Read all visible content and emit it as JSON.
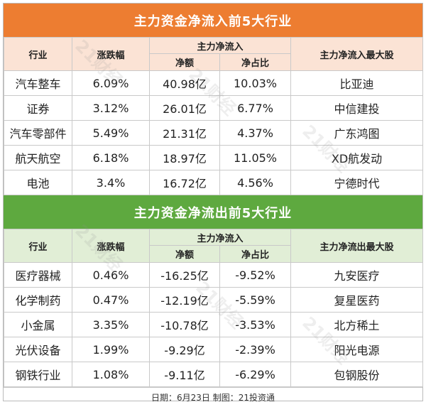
{
  "inflow": {
    "title": "主力资金净流入前5大行业",
    "headers": {
      "industry": "行业",
      "change": "涨跌幅",
      "net": "主力净流入",
      "amount": "净额",
      "ratio": "净占比",
      "top_stock": "主力净流入最大股"
    },
    "rows": [
      {
        "industry": "汽车整车",
        "change": "6.09%",
        "amount": "40.98亿",
        "ratio": "10.03%",
        "top_stock": "比亚迪"
      },
      {
        "industry": "证券",
        "change": "3.12%",
        "amount": "26.01亿",
        "ratio": "6.77%",
        "top_stock": "中信建投"
      },
      {
        "industry": "汽车零部件",
        "change": "5.49%",
        "amount": "21.31亿",
        "ratio": "4.37%",
        "top_stock": "广东鸿图"
      },
      {
        "industry": "航天航空",
        "change": "6.18%",
        "amount": "18.97亿",
        "ratio": "11.05%",
        "top_stock": "XD航发动"
      },
      {
        "industry": "电池",
        "change": "3.4%",
        "amount": "16.72亿",
        "ratio": "4.56%",
        "top_stock": "宁德时代"
      }
    ]
  },
  "outflow": {
    "title": "主力资金净流出前5大行业",
    "headers": {
      "industry": "行业",
      "change": "涨跌幅",
      "net": "主力净流入",
      "amount": "净额",
      "ratio": "净占比",
      "top_stock": "主力净流出最大股"
    },
    "rows": [
      {
        "industry": "医疗器械",
        "change": "0.46%",
        "amount": "-16.25亿",
        "ratio": "-9.52%",
        "top_stock": "九安医疗"
      },
      {
        "industry": "化学制药",
        "change": "0.47%",
        "amount": "-12.19亿",
        "ratio": "-5.59%",
        "top_stock": "复星医药"
      },
      {
        "industry": "小金属",
        "change": "3.35%",
        "amount": "-10.78亿",
        "ratio": "-3.53%",
        "top_stock": "北方稀土"
      },
      {
        "industry": "光伏设备",
        "change": "1.99%",
        "amount": "-9.29亿",
        "ratio": "-2.39%",
        "top_stock": "阳光电源"
      },
      {
        "industry": "钢铁行业",
        "change": "1.08%",
        "amount": "-9.11亿",
        "ratio": "-6.29%",
        "top_stock": "包钢股份"
      }
    ]
  },
  "footer": "日期：6月23日 制图：21投资通",
  "watermark": "21财经",
  "colors": {
    "inflow_banner": "#ed7d31",
    "inflow_header": "#fbe3d5",
    "outflow_banner": "#5ea93f",
    "outflow_header": "#e1eed6"
  }
}
